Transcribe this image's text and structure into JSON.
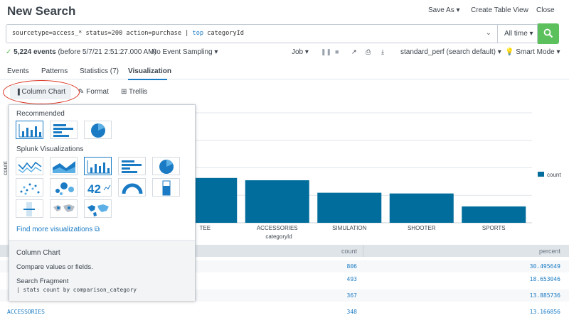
{
  "header": {
    "title": "New Search",
    "save_as": "Save As ▾",
    "create_table_view": "Create Table View",
    "close": "Close"
  },
  "search": {
    "query_pre": "sourcetype=access_* status=200 action=purchase | ",
    "query_kw": "top",
    "query_post": " categoryId",
    "time_range": "All time ▾"
  },
  "status": {
    "event_count": "5,224 events",
    "event_suffix": " (before 5/7/21 2:51:27.000 AM)",
    "sampling": "No Event Sampling ▾",
    "job": "Job ▾",
    "app": "standard_perf (search default) ▾",
    "mode": "Smart Mode ▾"
  },
  "tabs": [
    {
      "label": "Events"
    },
    {
      "label": "Patterns"
    },
    {
      "label": "Statistics (7)"
    },
    {
      "label": "Visualization"
    }
  ],
  "viz_toolbar": {
    "column_chart": "Column Chart",
    "format": "Format",
    "trellis": "Trellis"
  },
  "picker": {
    "recommended_label": "Recommended",
    "splunk_label": "Splunk Visualizations",
    "find_more": "Find more visualizations",
    "desc_title": "Column Chart",
    "desc_text": "Compare values or fields.",
    "frag_label": "Search Fragment",
    "frag_code": "| stats count by comparison_category"
  },
  "chart_data": {
    "type": "bar",
    "categories": [
      "TEE",
      "ACCESSORIES",
      "SIMULATION",
      "SHOOTER",
      "SPORTS"
    ],
    "values": [
      367,
      348,
      246,
      240,
      134
    ],
    "xlabel": "categoryId",
    "ylabel": "count",
    "legend": "count",
    "ylim": [
      0,
      900
    ],
    "bar_color": "#006d9c"
  },
  "table": {
    "headers": {
      "count": "count",
      "percent": "percent"
    },
    "rows": [
      {
        "category": "",
        "count": "806",
        "percent": "30.495649"
      },
      {
        "category": "",
        "count": "493",
        "percent": "18.653046"
      },
      {
        "category": "",
        "count": "367",
        "percent": "13.885736"
      },
      {
        "category": "ACCESSORIES",
        "count": "348",
        "percent": "13.166856"
      }
    ]
  }
}
